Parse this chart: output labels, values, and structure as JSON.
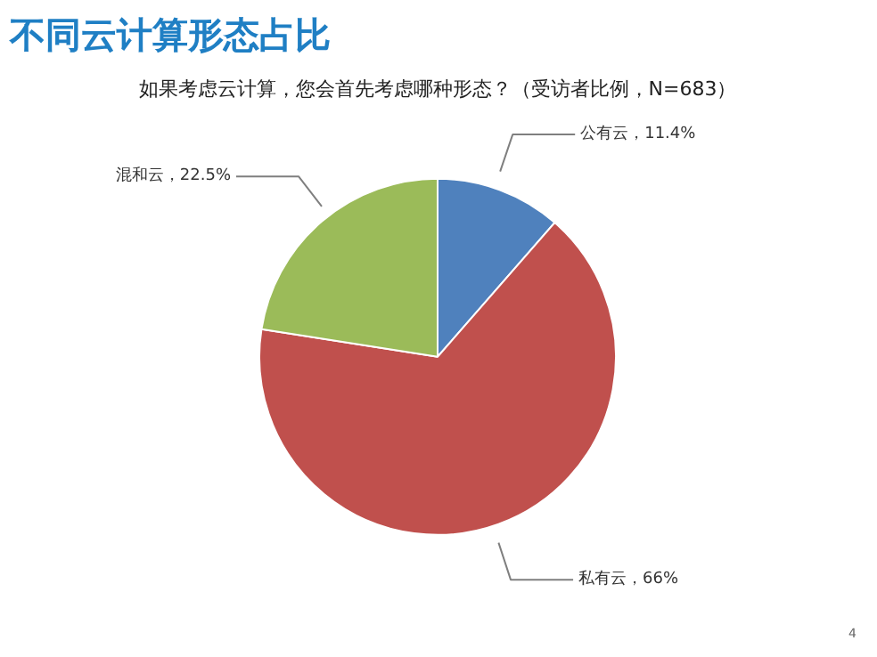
{
  "chart_data": {
    "type": "pie",
    "title": "不同云计算形态占比",
    "subtitle": "如果考虑云计算，您会首先考虑哪种形态？（受访者比例，N=683）",
    "categories": [
      "公有云",
      "私有云",
      "混和云"
    ],
    "values": [
      11.4,
      66,
      22.5
    ],
    "colors": [
      "#4f81bd",
      "#c0504d",
      "#9bbb59"
    ],
    "value_labels": [
      "，11.4%",
      "，66%",
      "，22.5%"
    ],
    "annotations": [
      "4"
    ],
    "legend": false
  }
}
